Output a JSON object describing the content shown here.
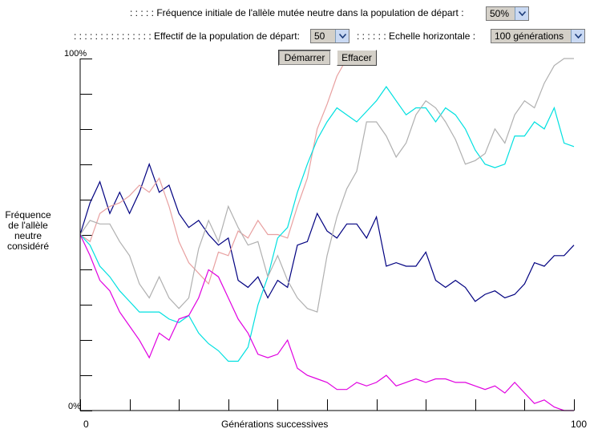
{
  "controls": {
    "initial_freq_label": ": : : : : Fréquence initiale de l'allèle mutée neutre dans la population de départ :",
    "initial_freq_value": "50%",
    "pop_size_label": ": : : : : : : : : : : : : : : Effectif de la population de départ:",
    "pop_size_value": "50",
    "h_scale_label": ": : : : : :   Echelle horizontale :",
    "h_scale_value": "100 générations",
    "start_button": "Démarrer",
    "clear_button": "Effacer"
  },
  "chart_data": {
    "type": "line",
    "xlabel": "Générations successives",
    "ylabel": "Fréquence de l'allèle neutre considéré",
    "x_min_label": "0",
    "x_max_label": "100",
    "y_max_label": "100%",
    "y_min_label": "0%",
    "xlim": [
      0,
      100
    ],
    "ylim": [
      0,
      100
    ],
    "series": [
      {
        "color": "#000080",
        "x": [
          0,
          2,
          4,
          6,
          8,
          10,
          12,
          14,
          16,
          18,
          20,
          22,
          24,
          26,
          28,
          30,
          32,
          34,
          36,
          38,
          40,
          42,
          44,
          46,
          48,
          50,
          52,
          54,
          56,
          58,
          60,
          62,
          64,
          66,
          68,
          70,
          72,
          74,
          76,
          78,
          80,
          82,
          84,
          86,
          88,
          90,
          92,
          94,
          96,
          98,
          100
        ],
        "y": [
          50,
          59,
          65,
          56,
          62,
          56,
          62,
          70,
          62,
          64,
          56,
          52,
          54,
          50,
          47,
          49,
          37,
          35,
          38,
          32,
          37,
          35,
          47,
          48,
          56,
          51,
          49,
          53,
          53,
          49,
          55,
          41,
          42,
          41,
          41,
          45,
          37,
          35,
          37,
          35,
          31,
          33,
          34,
          32,
          33,
          36,
          42,
          41,
          44,
          44,
          47
        ]
      },
      {
        "color": "#e8a0a0",
        "x": [
          0,
          2,
          4,
          6,
          8,
          10,
          12,
          14,
          16,
          18,
          20,
          22,
          24,
          26,
          28,
          30,
          32,
          34,
          36,
          38,
          40,
          42,
          44,
          46,
          48,
          50,
          52,
          54
        ],
        "y": [
          50,
          48,
          56,
          58,
          59,
          61,
          64,
          62,
          66,
          58,
          48,
          42,
          39,
          36,
          45,
          44,
          51,
          49,
          54,
          50,
          50,
          49,
          58,
          66,
          80,
          87,
          95,
          100
        ]
      },
      {
        "color": "#00e0e0",
        "x": [
          0,
          2,
          4,
          6,
          8,
          10,
          12,
          14,
          16,
          18,
          20,
          22,
          24,
          26,
          28,
          30,
          32,
          34,
          36,
          38,
          40,
          42,
          44,
          46,
          48,
          50,
          52,
          54,
          56,
          58,
          60,
          62,
          64,
          66,
          68,
          70,
          72,
          74,
          76,
          78,
          80,
          82,
          84,
          86,
          88,
          90,
          92,
          94,
          96,
          98,
          100
        ],
        "y": [
          50,
          47,
          41,
          38,
          34,
          31,
          28,
          28,
          28,
          26,
          25,
          27,
          22,
          19,
          17,
          14,
          14,
          18,
          30,
          38,
          49,
          52,
          62,
          70,
          77,
          82,
          86,
          84,
          82,
          85,
          88,
          92,
          88,
          84,
          86,
          86,
          82,
          86,
          84,
          80,
          74,
          70,
          69,
          70,
          78,
          78,
          82,
          80,
          86,
          76,
          75
        ]
      },
      {
        "color": "#b0b0b0",
        "x": [
          0,
          2,
          4,
          6,
          8,
          10,
          12,
          14,
          16,
          18,
          20,
          22,
          24,
          26,
          28,
          30,
          32,
          34,
          36,
          38,
          40,
          42,
          44,
          46,
          48,
          50,
          52,
          54,
          56,
          58,
          60,
          62,
          64,
          66,
          68,
          70,
          72,
          74,
          76,
          78,
          80,
          82,
          84,
          86,
          88,
          90,
          92,
          94,
          96,
          98,
          100
        ],
        "y": [
          50,
          54,
          53,
          53,
          48,
          44,
          36,
          32,
          38,
          32,
          29,
          32,
          46,
          54,
          48,
          58,
          52,
          47,
          48,
          38,
          44,
          37,
          32,
          29,
          28,
          44,
          55,
          63,
          68,
          82,
          82,
          78,
          72,
          76,
          84,
          88,
          86,
          82,
          77,
          70,
          71,
          73,
          80,
          76,
          84,
          88,
          86,
          93,
          98,
          100,
          100
        ]
      },
      {
        "color": "#e000e0",
        "x": [
          0,
          2,
          4,
          6,
          8,
          10,
          12,
          14,
          16,
          18,
          20,
          22,
          24,
          26,
          28,
          30,
          32,
          34,
          36,
          38,
          40,
          42,
          44,
          46,
          48,
          50,
          52,
          54,
          56,
          58,
          60,
          62,
          64,
          66,
          68,
          70,
          72,
          74,
          76,
          78,
          80,
          82,
          84,
          86,
          88,
          90,
          92,
          94,
          96,
          98,
          100
        ],
        "y": [
          50,
          44,
          37,
          34,
          28,
          24,
          20,
          15,
          22,
          20,
          26,
          27,
          32,
          40,
          38,
          32,
          26,
          22,
          16,
          15,
          16,
          20,
          12,
          10,
          9,
          8,
          6,
          6,
          8,
          7,
          8,
          10,
          7,
          8,
          9,
          8,
          9,
          9,
          8,
          8,
          7,
          6,
          7,
          5,
          8,
          5,
          2,
          3,
          1,
          0,
          0
        ]
      }
    ]
  }
}
